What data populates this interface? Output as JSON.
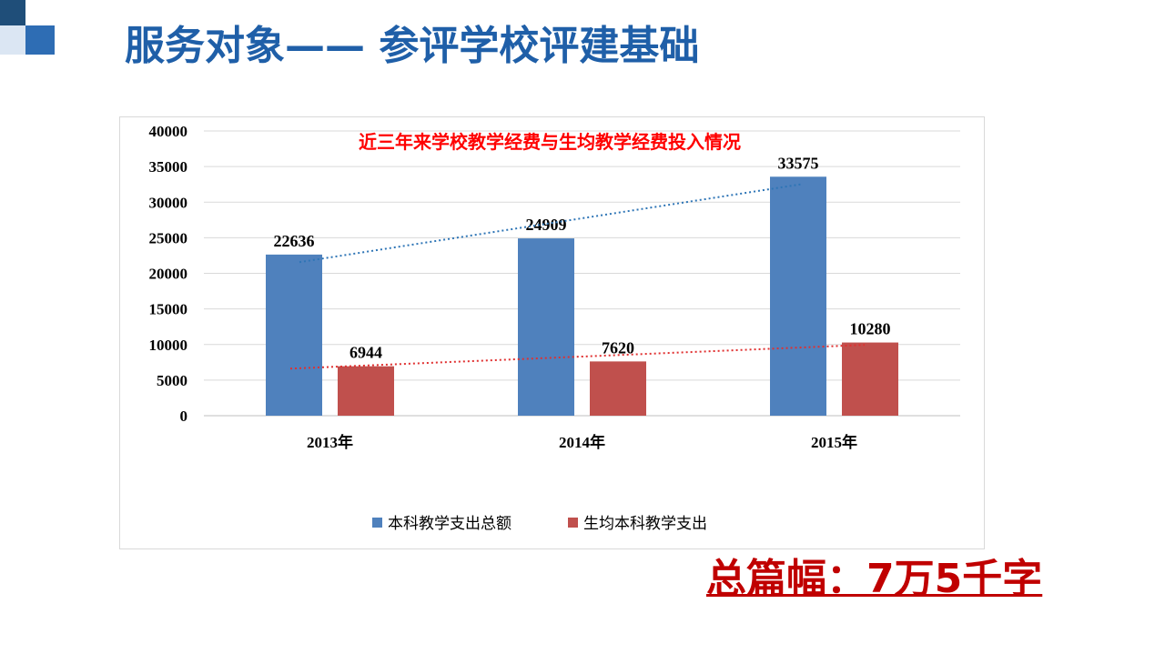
{
  "slide": {
    "title": "服务对象—— 参评学校评建基础",
    "callout": "总篇幅：7万5千字"
  },
  "colors": {
    "title": "#1f5fa8",
    "series_blue": "#4f81bd",
    "series_red": "#c0504d",
    "chart_title": "#ff0000",
    "callout": "#c00000"
  },
  "chart_data": {
    "type": "bar",
    "title": "近三年来学校教学经费与生均教学经费投入情况",
    "categories": [
      "2013年",
      "2014年",
      "2015年"
    ],
    "series": [
      {
        "name": "本科教学支出总额",
        "values": [
          22636,
          24909,
          33575
        ],
        "color": "#4f81bd",
        "trendline": "linear"
      },
      {
        "name": "生均本科教学支出",
        "values": [
          6944,
          7620,
          10280
        ],
        "color": "#c0504d",
        "trendline": "linear"
      }
    ],
    "yticks": [
      "0",
      "5000",
      "10000",
      "15000",
      "20000",
      "25000",
      "30000",
      "35000",
      "40000"
    ],
    "ylim": [
      0,
      40000
    ],
    "grid": true,
    "legend": "bottom"
  }
}
